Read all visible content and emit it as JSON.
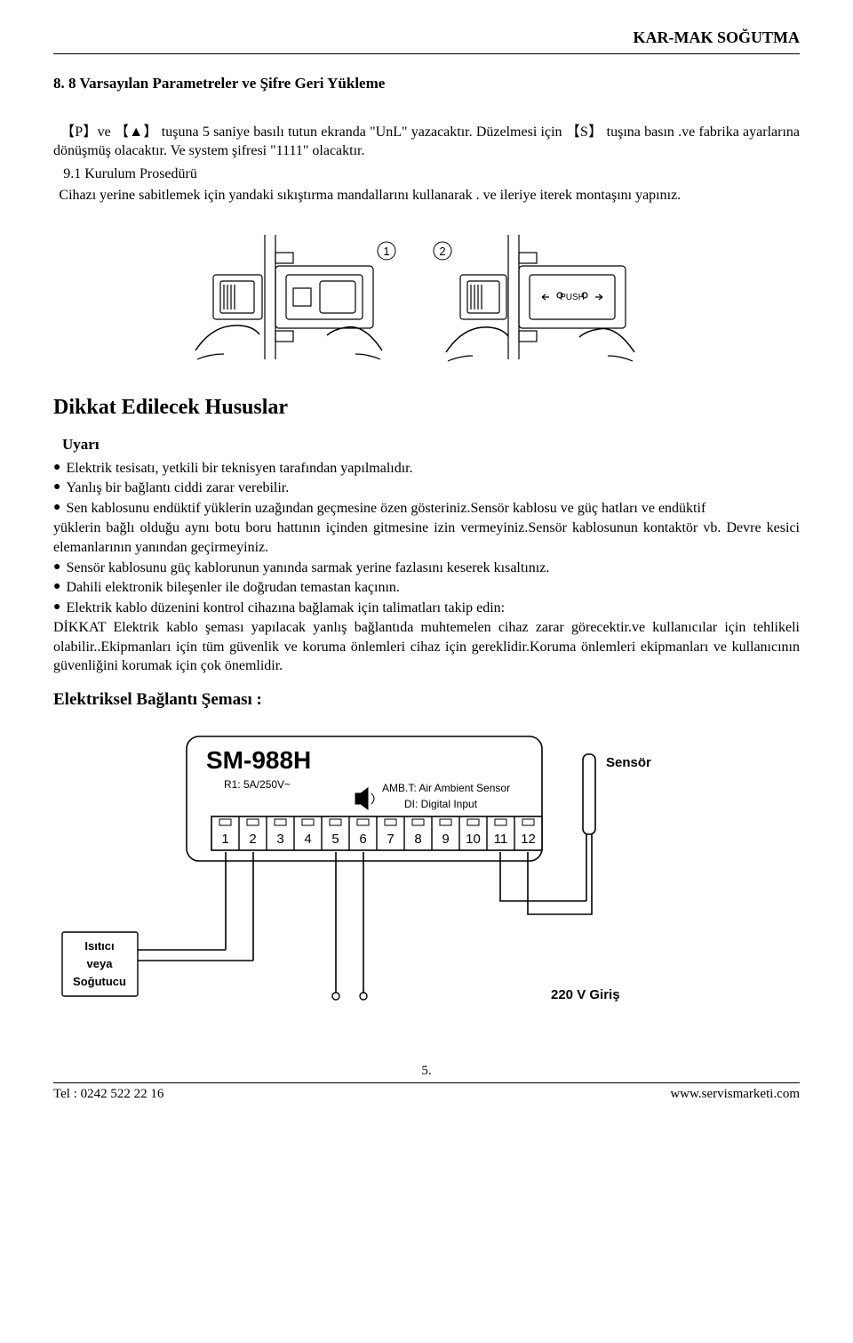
{
  "brand": "KAR-MAK SOĞUTMA",
  "section8": {
    "title": "8. 8 Varsayılan Parametreler ve Şifre Geri Yükleme",
    "p1": "【P】ve 【▲】 tuşuna 5 saniye basılı tutun ekranda \"UnL\" yazacaktır. Düzelmesi için 【S】 tuşına basın .ve fabrika ayarlarına dönüşmüş olacaktır. Ve system şifresi \"1111\" olacaktır."
  },
  "section9": {
    "title": "9.1 Kurulum Prosedürü",
    "p1": "Cihazı yerine sabitlemek için yandaki sıkıştırma mandallarını kullanarak . ve ileriye iterek montaşını yapınız."
  },
  "dikkat": {
    "heading": "Dikkat   Edilecek   Hususlar",
    "uyari": "Uyarı",
    "b1": "Elektrik tesisatı, yetkili bir teknisyen tarafından yapılmalıdır.",
    "b2": "Yanlış bir bağlantı ciddi zarar verebilir.",
    "b3_lead": "Sen kablosunu endüktif yüklerin uzağından geçmesine özen gösteriniz.Sensör kablosu ve güç hatları ve endüktif",
    "b3_cont": "yüklerin bağlı olduğu aynı botu boru hattının içinden gitmesine izin vermeyiniz.Sensör kablosunun kontaktör vb. Devre kesici elemanlarının yanından geçirmeyiniz.",
    "b4": "Sensör kablosunu   güç kablorunun yanında sarmak yerine fazlasını keserek kısaltınız.",
    "b5": "Dahili elektronik bileşenler ile doğrudan temastan kaçının.",
    "b6": "Elektrik kablo düzenini kontrol cihazına bağlamak için talimatları takip edin:",
    "trail": "DİKKAT Elektrik kablo şeması yapılacak yanlış bağlantıda muhtemelen cihaz zarar görecektir.ve kullanıcılar için tehlikeli olabilir..Ekipmanları için tüm güvenlik ve koruma önlemleri cihaz için   gereklidir.Koruma önlemleri ekipmanları ve kullanıcının güvenliğini korumak için çok önemlidir."
  },
  "elek_heading": "Elektriksel Bağlantı Şeması :",
  "wiring": {
    "model": "SM-988H",
    "rating": "R1: 5A/250V~",
    "amb": "AMB.T: Air Ambient Sensor",
    "di": "DI:  Digital Input",
    "terminals": [
      "1",
      "2",
      "3",
      "4",
      "5",
      "6",
      "7",
      "8",
      "9",
      "10",
      "11",
      "12"
    ],
    "sensor_label": "Sensör",
    "box_line1": "Isıtıcı",
    "box_line2": "veya",
    "box_line3": "Soğutucu",
    "mains": "220 V Giriş",
    "colors": {
      "line": "#000000",
      "bg": "#ffffff"
    }
  },
  "page_num": "5.",
  "footer_left": "Tel : 0242 522 22 16",
  "footer_right": "www.servismarketi.com",
  "install_fig": {
    "circ1": "1",
    "circ2": "2",
    "push": "PUSH"
  }
}
